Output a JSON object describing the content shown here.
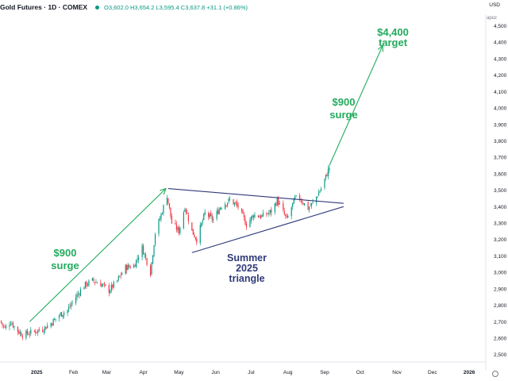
{
  "header": {
    "title": "Gold Futures · 1D · COMEX",
    "ohlc": "O3,602.0 H3,654.2 L3,595.4 C3,637.8 +31.1 (+0.86%)",
    "status_color": "#089981"
  },
  "currency": "USD",
  "price_unit": "apoz",
  "colors": {
    "up": "#089981",
    "down": "#f23645",
    "annotation": "#22ab5c",
    "triangle": "#2f3a7a"
  },
  "chart_data": {
    "type": "candlestick",
    "title": "Gold Futures · 1D · COMEX",
    "ylim": [
      2455,
      4570
    ],
    "y_ticks": [
      2500,
      2600,
      2700,
      2800,
      2900,
      3000,
      3100,
      3200,
      3300,
      3400,
      3500,
      3600,
      3700,
      3800,
      3900,
      4000,
      4100,
      4200,
      4300,
      4400,
      4500
    ],
    "x_ticks": [
      "2025",
      "Feb",
      "Mar",
      "Apr",
      "May",
      "Jun",
      "Jul",
      "Aug",
      "Sep",
      "Oct",
      "Nov",
      "Dec",
      "2026"
    ],
    "xlim": [
      "2024-12-01",
      "2026-01-15"
    ],
    "x_tick_dates": [
      "2025-01-01",
      "2025-02-01",
      "2025-03-01",
      "2025-04-01",
      "2025-05-01",
      "2025-06-01",
      "2025-07-01",
      "2025-08-01",
      "2025-09-01",
      "2025-10-01",
      "2025-11-01",
      "2025-12-01",
      "2026-01-01"
    ],
    "price_path": [
      [
        "2024-12-01",
        2705
      ],
      [
        "2024-12-05",
        2660
      ],
      [
        "2024-12-10",
        2700
      ],
      [
        "2024-12-15",
        2650
      ],
      [
        "2024-12-20",
        2620
      ],
      [
        "2024-12-30",
        2640
      ],
      [
        "2025-01-06",
        2655
      ],
      [
        "2025-01-13",
        2690
      ],
      [
        "2025-01-20",
        2740
      ],
      [
        "2025-01-27",
        2770
      ],
      [
        "2025-02-03",
        2850
      ],
      [
        "2025-02-10",
        2920
      ],
      [
        "2025-02-17",
        2950
      ],
      [
        "2025-02-24",
        2930
      ],
      [
        "2025-03-03",
        2890
      ],
      [
        "2025-03-10",
        2950
      ],
      [
        "2025-03-17",
        3030
      ],
      [
        "2025-03-24",
        3040
      ],
      [
        "2025-03-31",
        3150
      ],
      [
        "2025-04-07",
        3000
      ],
      [
        "2025-04-11",
        3240
      ],
      [
        "2025-04-16",
        3350
      ],
      [
        "2025-04-21",
        3470
      ],
      [
        "2025-04-25",
        3300
      ],
      [
        "2025-05-01",
        3250
      ],
      [
        "2025-05-06",
        3400
      ],
      [
        "2025-05-12",
        3250
      ],
      [
        "2025-05-16",
        3200
      ],
      [
        "2025-05-23",
        3360
      ],
      [
        "2025-05-30",
        3320
      ],
      [
        "2025-06-05",
        3400
      ],
      [
        "2025-06-13",
        3440
      ],
      [
        "2025-06-20",
        3400
      ],
      [
        "2025-06-27",
        3290
      ],
      [
        "2025-07-03",
        3350
      ],
      [
        "2025-07-10",
        3340
      ],
      [
        "2025-07-18",
        3370
      ],
      [
        "2025-07-23",
        3440
      ],
      [
        "2025-07-31",
        3320
      ],
      [
        "2025-08-07",
        3450
      ],
      [
        "2025-08-11",
        3450
      ],
      [
        "2025-08-18",
        3390
      ],
      [
        "2025-08-22",
        3420
      ],
      [
        "2025-08-29",
        3510
      ],
      [
        "2025-09-03",
        3600
      ],
      [
        "2025-09-05",
        3640
      ]
    ],
    "last_price": 3637.8
  },
  "annotations": {
    "triangle_upper": [
      [
        "2025-04-22",
        3510
      ],
      [
        "2025-09-17",
        3420
      ]
    ],
    "triangle_lower": [
      [
        "2025-05-12",
        3120
      ],
      [
        "2025-09-17",
        3400
      ]
    ],
    "arrow_first": [
      [
        "2024-12-26",
        2700
      ],
      [
        "2025-04-20",
        3510
      ]
    ],
    "arrow_second": [
      [
        "2025-09-05",
        3650
      ],
      [
        "2025-10-20",
        4380
      ]
    ],
    "label_first": {
      "line1": "$900",
      "line2": "surge"
    },
    "label_second": {
      "line1": "$900",
      "line2": "surge"
    },
    "label_target": {
      "line1": "$4,400",
      "line2": "target"
    },
    "label_triangle": {
      "line1": "Summer",
      "line2": "2025",
      "line3": "triangle"
    }
  }
}
